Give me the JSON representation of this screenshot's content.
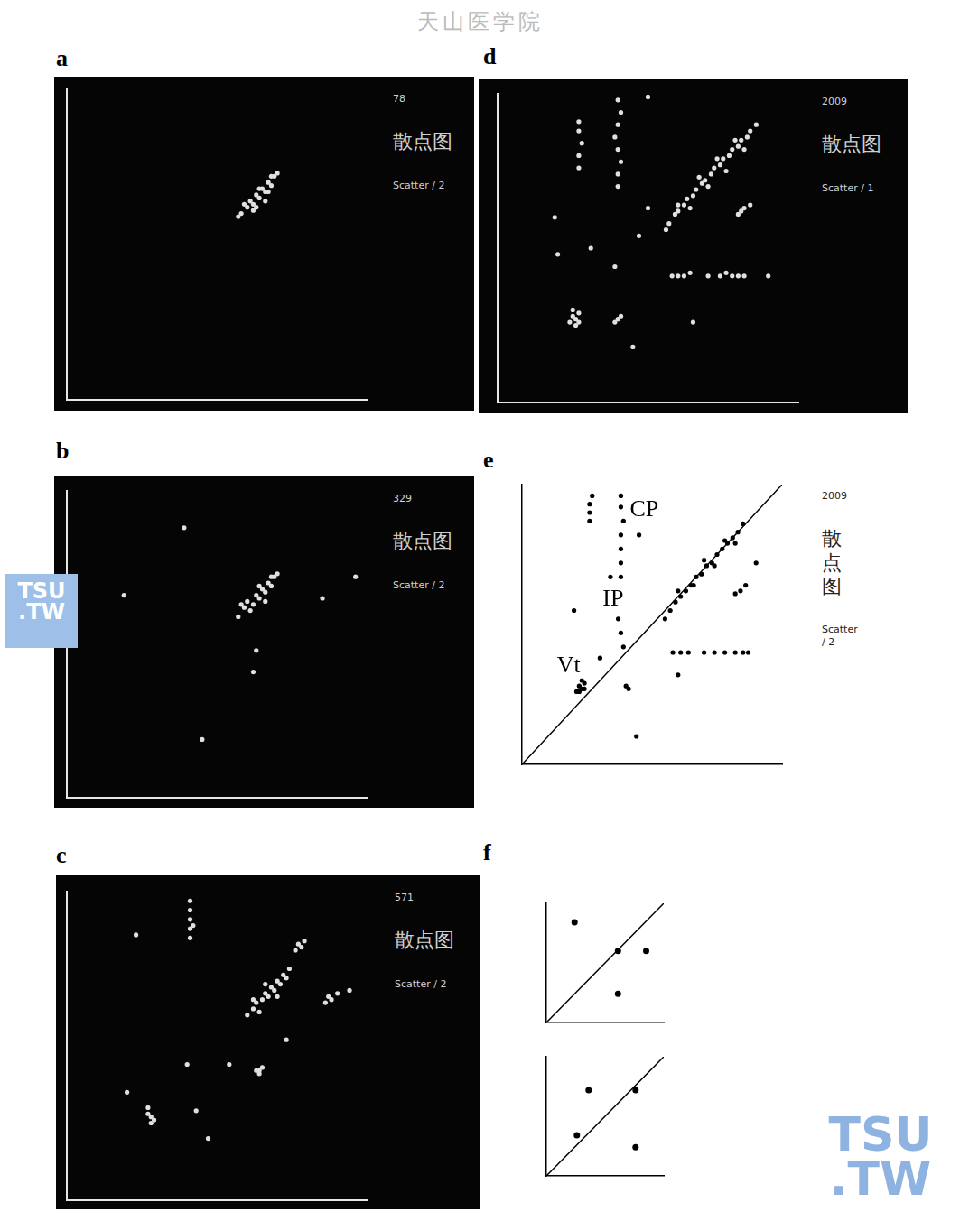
{
  "header": "天山医学院",
  "watermarks": [
    [
      "TSU",
      ".TW"
    ],
    [
      "TSU",
      ".TW"
    ]
  ],
  "chart_data": [
    {
      "type": "scatter",
      "title": "a",
      "side_texts": [
        "78",
        "散点图",
        "Scatter / 2"
      ],
      "xlim": [
        0,
        100
      ],
      "ylim": [
        0,
        100
      ],
      "grid": false,
      "tick_labels": false,
      "series": [
        {
          "color": "#e0e0e0",
          "marker": "circle",
          "values": [
            [
              58,
              60
            ],
            [
              60,
              62
            ],
            [
              61,
              64
            ],
            [
              62,
              63
            ],
            [
              63,
              66
            ],
            [
              64,
              65
            ],
            [
              65,
              68
            ],
            [
              66,
              67
            ],
            [
              67,
              70
            ],
            [
              68,
              69
            ],
            [
              69,
              72
            ],
            [
              70,
              73
            ],
            [
              62,
              61
            ],
            [
              64,
              68
            ],
            [
              66,
              64
            ],
            [
              59,
              63
            ],
            [
              68,
              72
            ],
            [
              57,
              59
            ],
            [
              63,
              62
            ],
            [
              67,
              67
            ]
          ]
        }
      ]
    },
    {
      "type": "scatter",
      "title": "b",
      "side_texts": [
        "329",
        "散点图",
        "Scatter / 2"
      ],
      "xlim": [
        0,
        100
      ],
      "ylim": [
        0,
        100
      ],
      "grid": false,
      "tick_labels": false,
      "series": [
        {
          "color": "#e0e0e0",
          "marker": "circle",
          "values": [
            [
              57,
              59
            ],
            [
              59,
              62
            ],
            [
              60,
              64
            ],
            [
              62,
              63
            ],
            [
              63,
              66
            ],
            [
              64,
              65
            ],
            [
              65,
              68
            ],
            [
              66,
              67
            ],
            [
              67,
              70
            ],
            [
              68,
              69
            ],
            [
              69,
              72
            ],
            [
              70,
              73
            ],
            [
              61,
              61
            ],
            [
              64,
              69
            ],
            [
              66,
              64
            ],
            [
              58,
              63
            ],
            [
              68,
              72
            ],
            [
              39,
              88
            ],
            [
              19,
              66
            ],
            [
              85,
              65
            ],
            [
              96,
              72
            ],
            [
              63,
              48
            ],
            [
              62,
              41
            ],
            [
              45,
              19
            ]
          ]
        }
      ]
    },
    {
      "type": "scatter",
      "title": "c",
      "side_texts": [
        "571",
        "散点图",
        "Scatter / 2"
      ],
      "xlim": [
        0,
        100
      ],
      "ylim": [
        0,
        100
      ],
      "grid": false,
      "tick_labels": false,
      "series": [
        {
          "color": "#e0e0e0",
          "marker": "circle",
          "values": [
            [
              60,
              60
            ],
            [
              62,
              62
            ],
            [
              63,
              64
            ],
            [
              65,
              65
            ],
            [
              66,
              67
            ],
            [
              67,
              66
            ],
            [
              68,
              69
            ],
            [
              69,
              68
            ],
            [
              70,
              71
            ],
            [
              71,
              70
            ],
            [
              72,
              73
            ],
            [
              73,
              72
            ],
            [
              64,
              61
            ],
            [
              66,
              70
            ],
            [
              70,
              66
            ],
            [
              62,
              65
            ],
            [
              74,
              75
            ],
            [
              76,
              81
            ],
            [
              77,
              83
            ],
            [
              78,
              82
            ],
            [
              79,
              84
            ],
            [
              86,
              64
            ],
            [
              88,
              65
            ],
            [
              90,
              67
            ],
            [
              87,
              66
            ],
            [
              41,
              85
            ],
            [
              41,
              88
            ],
            [
              41,
              91
            ],
            [
              41,
              94
            ],
            [
              41,
              97
            ],
            [
              42,
              89
            ],
            [
              23,
              86
            ],
            [
              63,
              42
            ],
            [
              64,
              42
            ],
            [
              65,
              43
            ],
            [
              64,
              41
            ],
            [
              27,
              28
            ],
            [
              28,
              27
            ],
            [
              29,
              26
            ],
            [
              28,
              25
            ],
            [
              27,
              30
            ],
            [
              43,
              29
            ],
            [
              47,
              20
            ],
            [
              20,
              35
            ],
            [
              40,
              44
            ],
            [
              54,
              44
            ],
            [
              73,
              52
            ],
            [
              94,
              68
            ]
          ]
        }
      ]
    },
    {
      "type": "scatter",
      "title": "d",
      "side_texts": [
        "2009",
        "散点图",
        "Scatter / 1"
      ],
      "xlim": [
        0,
        100
      ],
      "ylim": [
        0,
        100
      ],
      "grid": false,
      "tick_labels": false,
      "series": [
        {
          "color": "#e0e0e0",
          "marker": "circle",
          "values": [
            [
              57,
              58
            ],
            [
              59,
              61
            ],
            [
              60,
              62
            ],
            [
              62,
              64
            ],
            [
              63,
              66
            ],
            [
              65,
              67
            ],
            [
              66,
              69
            ],
            [
              68,
              71
            ],
            [
              69,
              72
            ],
            [
              71,
              74
            ],
            [
              72,
              76
            ],
            [
              74,
              77
            ],
            [
              75,
              79
            ],
            [
              77,
              80
            ],
            [
              78,
              82
            ],
            [
              80,
              83
            ],
            [
              81,
              85
            ],
            [
              83,
              86
            ],
            [
              84,
              88
            ],
            [
              60,
              64
            ],
            [
              64,
              63
            ],
            [
              67,
              73
            ],
            [
              70,
              70
            ],
            [
              73,
              79
            ],
            [
              76,
              75
            ],
            [
              79,
              85
            ],
            [
              82,
              82
            ],
            [
              56,
              56
            ],
            [
              86,
              90
            ],
            [
              40,
              70
            ],
            [
              40,
              74
            ],
            [
              41,
              78
            ],
            [
              40,
              82
            ],
            [
              39,
              86
            ],
            [
              40,
              90
            ],
            [
              41,
              94
            ],
            [
              40,
              98
            ],
            [
              27,
              76
            ],
            [
              27,
              80
            ],
            [
              28,
              84
            ],
            [
              27,
              88
            ],
            [
              27,
              91
            ],
            [
              80,
              61
            ],
            [
              82,
              63
            ],
            [
              84,
              64
            ],
            [
              81,
              62
            ],
            [
              58,
              41
            ],
            [
              60,
              41
            ],
            [
              62,
              41
            ],
            [
              64,
              42
            ],
            [
              70,
              41
            ],
            [
              74,
              41
            ],
            [
              76,
              42
            ],
            [
              78,
              41
            ],
            [
              80,
              41
            ],
            [
              82,
              41
            ],
            [
              24,
              26
            ],
            [
              25,
              28
            ],
            [
              26,
              27
            ],
            [
              27,
              29
            ],
            [
              26,
              25
            ],
            [
              25,
              30
            ],
            [
              27,
              26
            ],
            [
              40,
              27
            ],
            [
              41,
              28
            ],
            [
              39,
              26
            ],
            [
              31,
              50
            ],
            [
              39,
              44
            ],
            [
              19,
              60
            ],
            [
              50,
              63
            ],
            [
              90,
              41
            ],
            [
              65,
              26
            ],
            [
              45,
              18
            ],
            [
              50,
              99
            ],
            [
              20,
              48
            ],
            [
              47,
              54
            ]
          ]
        }
      ]
    },
    {
      "type": "scatter",
      "title": "e",
      "side_texts": [
        "2009",
        "散点图",
        "Scatter / 2"
      ],
      "xlim": [
        0,
        100
      ],
      "ylim": [
        0,
        100
      ],
      "grid": false,
      "tick_labels": false,
      "annotations": [
        {
          "text": "CP",
          "x": 47,
          "y": 91
        },
        {
          "text": "IP",
          "x": 35,
          "y": 59
        },
        {
          "text": "Vt",
          "x": 18,
          "y": 35
        }
      ],
      "series": [
        {
          "color": "#000000",
          "marker": "circle",
          "values": [
            [
              21,
              26
            ],
            [
              22,
              28
            ],
            [
              23,
              27
            ],
            [
              24,
              29
            ],
            [
              23,
              30
            ],
            [
              22,
              26
            ],
            [
              24,
              27
            ],
            [
              55,
              52
            ],
            [
              57,
              55
            ],
            [
              59,
              58
            ],
            [
              61,
              60
            ],
            [
              63,
              62
            ],
            [
              65,
              64
            ],
            [
              67,
              67
            ],
            [
              69,
              68
            ],
            [
              71,
              71
            ],
            [
              73,
              72
            ],
            [
              75,
              75
            ],
            [
              77,
              77
            ],
            [
              79,
              79
            ],
            [
              81,
              81
            ],
            [
              83,
              83
            ],
            [
              85,
              86
            ],
            [
              60,
              62
            ],
            [
              66,
              64
            ],
            [
              70,
              73
            ],
            [
              74,
              71
            ],
            [
              78,
              80
            ],
            [
              82,
              79
            ],
            [
              34,
              67
            ],
            [
              35,
              62
            ],
            [
              36,
              57
            ],
            [
              37,
              52
            ],
            [
              38,
              47
            ],
            [
              39,
              42
            ],
            [
              38,
              67
            ],
            [
              38,
              72
            ],
            [
              38,
              77
            ],
            [
              38,
              82
            ],
            [
              39,
              87
            ],
            [
              38,
              92
            ],
            [
              38,
              96
            ],
            [
              26,
              87
            ],
            [
              26,
              90
            ],
            [
              26,
              93
            ],
            [
              27,
              96
            ],
            [
              58,
              40
            ],
            [
              61,
              40
            ],
            [
              64,
              40
            ],
            [
              70,
              40
            ],
            [
              74,
              40
            ],
            [
              78,
              40
            ],
            [
              82,
              40
            ],
            [
              85,
              40
            ],
            [
              87,
              40
            ],
            [
              82,
              61
            ],
            [
              84,
              62
            ],
            [
              86,
              64
            ],
            [
              40,
              28
            ],
            [
              41,
              27
            ],
            [
              30,
              38
            ],
            [
              45,
              82
            ],
            [
              60,
              32
            ],
            [
              90,
              72
            ],
            [
              20,
              55
            ],
            [
              44,
              10
            ]
          ]
        },
        {
          "type": "line",
          "color": "#000000",
          "line_style": "solid",
          "values": [
            [
              0,
              0
            ],
            [
              100,
              100
            ]
          ]
        }
      ]
    },
    {
      "type": "scatter",
      "title": "f",
      "xlim": [
        0,
        100
      ],
      "ylim": [
        0,
        100
      ],
      "grid": false,
      "tick_labels": false,
      "series": [
        {
          "color": "#000000",
          "marker": "circle",
          "values": [
            [
              24,
              84
            ],
            [
              61,
              60
            ],
            [
              85,
              60
            ],
            [
              61,
              24
            ]
          ]
        },
        {
          "type": "line",
          "color": "#000000",
          "line_style": "solid",
          "values": [
            [
              0,
              0
            ],
            [
              100,
              100
            ]
          ]
        }
      ]
    },
    {
      "type": "scatter",
      "xlim": [
        0,
        100
      ],
      "ylim": [
        0,
        100
      ],
      "grid": false,
      "tick_labels": false,
      "series": [
        {
          "color": "#000000",
          "marker": "circle",
          "values": [
            [
              36,
              72
            ],
            [
              76,
              72
            ],
            [
              26,
              34
            ],
            [
              76,
              24
            ]
          ]
        },
        {
          "type": "line",
          "color": "#000000",
          "line_style": "solid",
          "values": [
            [
              0,
              0
            ],
            [
              100,
              100
            ]
          ]
        }
      ]
    }
  ]
}
